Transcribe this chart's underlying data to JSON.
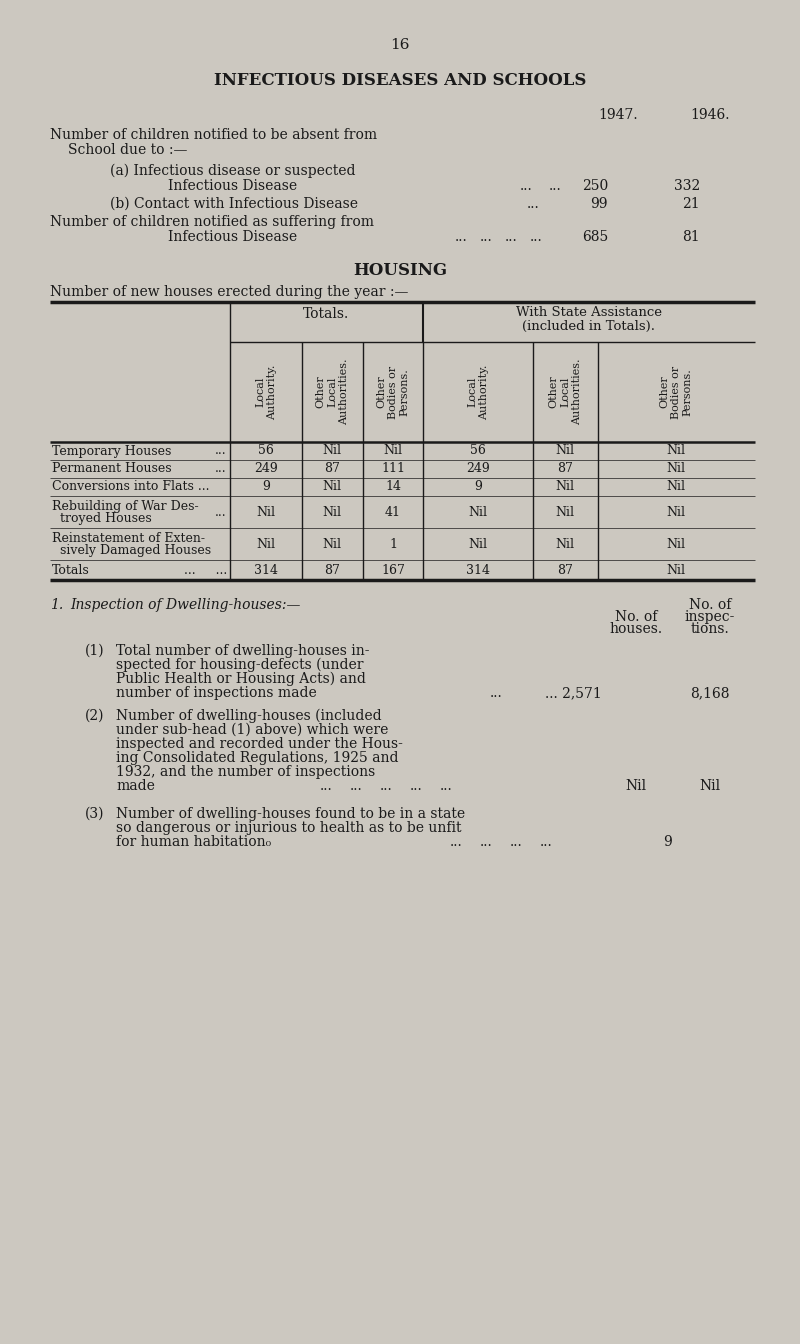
{
  "page_number": "16",
  "bg_color": "#ccc8c0",
  "text_color": "#1a1a1a",
  "title1": "INFECTIOUS DISEASES AND SCHOOLS",
  "housing_title": "HOUSING"
}
